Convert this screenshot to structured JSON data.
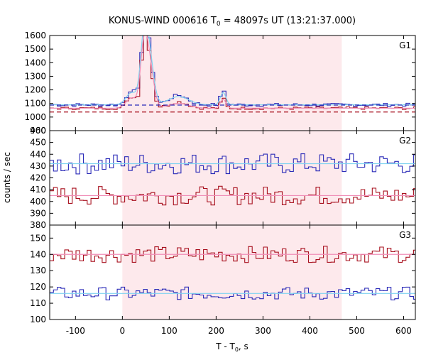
{
  "chart_data": {
    "type": "line",
    "title": "KONUS-WIND 000616 T",
    "title_sub": "0",
    "title_rest": " = 48097s UT (13:21:37.000)",
    "xlabel": "T - T",
    "xlabel_sub": "0",
    "xlabel_rest": ", s",
    "ylabel": "counts / sec",
    "xlim": [
      -155,
      625
    ],
    "xticks": [
      -100,
      0,
      100,
      200,
      300,
      400,
      500,
      600
    ],
    "xtick_labels": [
      "-100",
      "0",
      "100",
      "200",
      "300",
      "400",
      "500",
      "600"
    ],
    "shaded_interval": [
      0,
      468
    ],
    "colors": {
      "shade": "#fde9ec",
      "blue": "#2b2bb8",
      "red": "#a8101e",
      "light_blue": "#7fd3f0",
      "pink": "#f08fb8",
      "dashed_blue": "#2b2bb8",
      "dashed_red": "#a8101e"
    },
    "panels": [
      {
        "label": "G1",
        "ylim": [
          900,
          1600
        ],
        "yticks": [
          900,
          1000,
          1100,
          1200,
          1300,
          1400,
          1500,
          1600
        ],
        "ytick_labels": [
          "900",
          "1000",
          "1100",
          "1200",
          "1300",
          "1400",
          "1500",
          "1600"
        ],
        "series": [
          {
            "color": "blue",
            "style": "step",
            "base": 1090,
            "noise": 12,
            "peaks": [
              [
                55,
                1540,
                9
              ],
              [
                45,
                1400,
                6
              ],
              [
                20,
                1200,
                10
              ],
              [
                215,
                1200,
                5
              ],
              [
                120,
                1160,
                20
              ]
            ]
          },
          {
            "color": "red",
            "style": "step",
            "base": 1065,
            "noise": 10,
            "peaks": [
              [
                55,
                1470,
                9
              ],
              [
                45,
                1350,
                6
              ],
              [
                20,
                1150,
                10
              ],
              [
                215,
                1140,
                5
              ],
              [
                120,
                1110,
                20
              ]
            ]
          },
          {
            "color": "light_blue",
            "style": "smooth",
            "base": 1090,
            "peaks": [
              [
                55,
                1520,
                10
              ],
              [
                45,
                1390,
                7
              ],
              [
                20,
                1180,
                12
              ],
              [
                215,
                1180,
                6
              ],
              [
                120,
                1150,
                22
              ]
            ]
          },
          {
            "color": "pink",
            "style": "smooth",
            "base": 1065,
            "peaks": [
              [
                55,
                1450,
                10
              ],
              [
                45,
                1340,
                7
              ],
              [
                20,
                1140,
                12
              ],
              [
                215,
                1130,
                6
              ],
              [
                120,
                1100,
                22
              ]
            ]
          },
          {
            "color": "dashed_blue",
            "style": "dashed",
            "base": 1088
          },
          {
            "color": "dashed_red",
            "style": "dashed",
            "base": 1037
          }
        ]
      },
      {
        "label": "G2",
        "ylim": [
          380,
          460
        ],
        "yticks": [
          380,
          390,
          400,
          410,
          420,
          430,
          440,
          450,
          460
        ],
        "ytick_labels": [
          "380",
          "390",
          "400",
          "410",
          "420",
          "430",
          "440",
          "450",
          "460"
        ],
        "series": [
          {
            "color": "blue",
            "style": "step",
            "base": 432,
            "noise": 9,
            "peaks": []
          },
          {
            "color": "red",
            "style": "step",
            "base": 405,
            "noise": 8,
            "peaks": []
          },
          {
            "color": "light_blue",
            "style": "flat",
            "base": 432
          },
          {
            "color": "pink",
            "style": "flat",
            "base": 405
          }
        ]
      },
      {
        "label": "G3",
        "ylim": [
          100,
          158
        ],
        "yticks": [
          100,
          110,
          120,
          130,
          140,
          150
        ],
        "ytick_labels": [
          "100",
          "110",
          "120",
          "130",
          "140",
          "150"
        ],
        "series": [
          {
            "color": "red",
            "style": "step",
            "base": 140,
            "noise": 5,
            "peaks": []
          },
          {
            "color": "blue",
            "style": "step",
            "base": 116,
            "noise": 4,
            "peaks": []
          },
          {
            "color": "pink",
            "style": "flat",
            "base": 140
          },
          {
            "color": "light_blue",
            "style": "flat",
            "base": 116
          }
        ]
      }
    ]
  }
}
